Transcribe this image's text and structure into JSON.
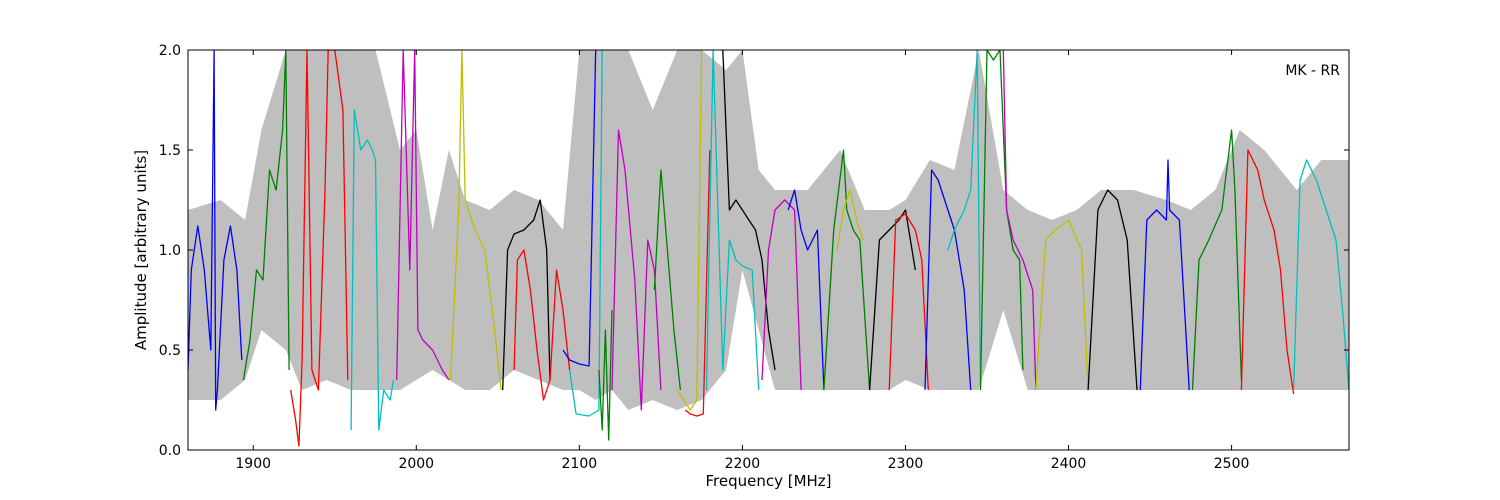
{
  "chart_data": {
    "type": "line",
    "title": "",
    "xlabel": "Frequency [MHz]",
    "ylabel": "Amplitude [arbitrary units]",
    "xlim": [
      1860,
      2572
    ],
    "ylim": [
      0.0,
      2.0
    ],
    "xticks": [
      1900,
      2000,
      2100,
      2200,
      2300,
      2400,
      2500
    ],
    "xtick_labels": [
      "1900",
      "2000",
      "2100",
      "2200",
      "2300",
      "2400",
      "2500"
    ],
    "yticks": [
      0.0,
      0.5,
      1.0,
      1.5,
      2.0
    ],
    "ytick_labels": [
      "0.0",
      "0.5",
      "1.0",
      "1.5",
      "2.0"
    ],
    "annotation": "MK - RR",
    "legend": "none",
    "grid": false,
    "background_band": {
      "color": "#bfbfbf",
      "x": [
        1860,
        1880,
        1895,
        1905,
        1920,
        1930,
        1945,
        1960,
        1975,
        1990,
        2000,
        2010,
        2020,
        2030,
        2045,
        2060,
        2075,
        2090,
        2100,
        2110,
        2120,
        2130,
        2145,
        2160,
        2175,
        2190,
        2200,
        2210,
        2220,
        2240,
        2260,
        2275,
        2290,
        2300,
        2315,
        2330,
        2345,
        2360,
        2375,
        2390,
        2405,
        2420,
        2440,
        2460,
        2475,
        2490,
        2505,
        2520,
        2540,
        2555,
        2572
      ],
      "low": [
        0.25,
        0.25,
        0.35,
        0.6,
        0.5,
        0.3,
        0.35,
        0.3,
        0.3,
        0.3,
        0.35,
        0.4,
        0.35,
        0.3,
        0.3,
        0.4,
        0.35,
        0.3,
        0.3,
        0.25,
        0.3,
        0.2,
        0.25,
        0.2,
        0.25,
        0.4,
        0.9,
        0.6,
        0.3,
        0.3,
        0.3,
        0.3,
        0.3,
        0.35,
        0.3,
        0.3,
        0.3,
        0.7,
        0.3,
        0.3,
        0.3,
        0.3,
        0.3,
        0.3,
        0.3,
        0.3,
        0.3,
        0.3,
        0.3,
        0.3,
        0.3
      ],
      "high": [
        1.2,
        1.25,
        1.15,
        1.6,
        2.0,
        2.0,
        2.0,
        2.0,
        2.0,
        1.5,
        1.6,
        1.1,
        1.5,
        1.25,
        1.2,
        1.3,
        1.25,
        1.1,
        2.0,
        2.0,
        2.0,
        2.0,
        1.7,
        2.0,
        2.0,
        1.9,
        2.0,
        1.4,
        1.3,
        1.3,
        1.5,
        1.2,
        1.2,
        1.25,
        1.45,
        1.4,
        2.0,
        1.3,
        1.2,
        1.15,
        1.2,
        1.3,
        1.3,
        1.25,
        1.2,
        1.3,
        1.6,
        1.5,
        1.3,
        1.45,
        1.45
      ]
    },
    "series": [
      {
        "color": "#0000ff",
        "x": [
          1860,
          1862,
          1866,
          1870,
          1874,
          1876,
          1877,
          1878,
          1882,
          1886,
          1890,
          1893
        ],
        "y": [
          0.4,
          0.9,
          1.12,
          0.9,
          0.5,
          2.0,
          0.2,
          0.3,
          0.95,
          1.12,
          0.9,
          0.45
        ]
      },
      {
        "color": "#008000",
        "x": [
          1894,
          1898,
          1902,
          1906,
          1910,
          1914,
          1918,
          1920,
          1922
        ],
        "y": [
          0.35,
          0.55,
          0.9,
          0.85,
          1.4,
          1.3,
          1.6,
          2.0,
          0.4
        ]
      },
      {
        "color": "#ff0000",
        "x": [
          1923,
          1926,
          1928,
          1930,
          1933,
          1936,
          1940,
          1944,
          1946,
          1950,
          1955,
          1958
        ],
        "y": [
          0.3,
          0.15,
          0.02,
          0.45,
          2.0,
          0.4,
          0.3,
          1.3,
          2.0,
          2.0,
          1.7,
          0.35
        ]
      },
      {
        "color": "#00bfbf",
        "x": [
          1960,
          1962,
          1966,
          1970,
          1973,
          1975,
          1977,
          1980,
          1984,
          1986
        ],
        "y": [
          0.1,
          1.7,
          1.5,
          1.55,
          1.5,
          1.45,
          0.1,
          0.3,
          0.25,
          0.35
        ]
      },
      {
        "color": "#bf00bf",
        "x": [
          1988,
          1992,
          1996,
          1999,
          2001,
          2004,
          2010,
          2016,
          2020
        ],
        "y": [
          0.35,
          2.0,
          0.9,
          2.0,
          0.6,
          0.55,
          0.5,
          0.4,
          0.35
        ]
      },
      {
        "color": "#bfbf00",
        "x": [
          2021,
          2026,
          2028,
          2030,
          2036,
          2042,
          2048,
          2052
        ],
        "y": [
          0.35,
          1.2,
          2.0,
          1.25,
          1.1,
          1.0,
          0.6,
          0.3
        ]
      },
      {
        "color": "#000000",
        "x": [
          2053,
          2056,
          2060,
          2066,
          2072,
          2076,
          2080,
          2082
        ],
        "y": [
          0.3,
          1.0,
          1.08,
          1.1,
          1.15,
          1.25,
          1.0,
          0.35
        ]
      },
      {
        "color": "#ff0000",
        "x": [
          2060,
          2062,
          2066,
          2070,
          2074,
          2078,
          2082,
          2086,
          2090,
          2094
        ],
        "y": [
          0.4,
          0.95,
          1.0,
          0.8,
          0.5,
          0.25,
          0.35,
          0.9,
          0.7,
          0.4
        ]
      },
      {
        "color": "#0000ff",
        "x": [
          2090,
          2094,
          2100,
          2106,
          2110
        ],
        "y": [
          0.5,
          0.45,
          0.43,
          0.42,
          2.0
        ]
      },
      {
        "color": "#00bfbf",
        "x": [
          2094,
          2098,
          2106,
          2112,
          2114
        ],
        "y": [
          0.4,
          0.18,
          0.17,
          0.2,
          2.0
        ]
      },
      {
        "color": "#008000",
        "x": [
          2112,
          2114,
          2116,
          2118,
          2120
        ],
        "y": [
          0.4,
          0.1,
          0.6,
          0.05,
          0.7
        ]
      },
      {
        "color": "#bf00bf",
        "x": [
          2120,
          2124,
          2128,
          2134,
          2138,
          2142,
          2146,
          2150
        ],
        "y": [
          0.3,
          1.6,
          1.4,
          0.85,
          0.2,
          1.05,
          0.9,
          0.3
        ]
      },
      {
        "color": "#008000",
        "x": [
          2146,
          2150,
          2154,
          2158,
          2162
        ],
        "y": [
          0.8,
          1.4,
          1.0,
          0.6,
          0.3
        ]
      },
      {
        "color": "#bfbf00",
        "x": [
          2160,
          2164,
          2168,
          2172,
          2175
        ],
        "y": [
          0.3,
          0.25,
          0.2,
          0.25,
          2.0
        ]
      },
      {
        "color": "#ff0000",
        "x": [
          2165,
          2168,
          2172,
          2176,
          2180
        ],
        "y": [
          0.2,
          0.18,
          0.17,
          0.18,
          1.5
        ]
      },
      {
        "color": "#00bfbf",
        "x": [
          2178,
          2182,
          2188,
          2192,
          2196,
          2200,
          2206,
          2210
        ],
        "y": [
          0.3,
          2.0,
          0.4,
          1.05,
          0.95,
          0.92,
          0.9,
          0.3
        ]
      },
      {
        "color": "#000000",
        "x": [
          2188,
          2192,
          2196,
          2200,
          2204,
          2208,
          2212,
          2216,
          2220
        ],
        "y": [
          2.0,
          1.2,
          1.25,
          1.2,
          1.15,
          1.1,
          0.95,
          0.6,
          0.4
        ]
      },
      {
        "color": "#bf00bf",
        "x": [
          2212,
          2216,
          2220,
          2226,
          2232,
          2236
        ],
        "y": [
          0.35,
          1.0,
          1.2,
          1.25,
          1.2,
          0.3
        ]
      },
      {
        "color": "#0000ff",
        "x": [
          2228,
          2232,
          2236,
          2240,
          2246,
          2250
        ],
        "y": [
          1.2,
          1.3,
          1.1,
          1.0,
          1.1,
          0.3
        ]
      },
      {
        "color": "#008000",
        "x": [
          2250,
          2256,
          2262,
          2264,
          2268,
          2272,
          2278
        ],
        "y": [
          0.3,
          1.1,
          1.5,
          1.2,
          1.1,
          1.05,
          0.3
        ]
      },
      {
        "color": "#bfbf00",
        "x": [
          2258,
          2262,
          2266,
          2270,
          2274
        ],
        "y": [
          1.0,
          1.2,
          1.3,
          1.15,
          1.05
        ]
      },
      {
        "color": "#000000",
        "x": [
          2278,
          2284,
          2290,
          2296,
          2300,
          2306
        ],
        "y": [
          0.3,
          1.05,
          1.1,
          1.15,
          1.2,
          0.9
        ]
      },
      {
        "color": "#ff0000",
        "x": [
          2290,
          2294,
          2300,
          2306,
          2310,
          2314
        ],
        "y": [
          0.3,
          1.15,
          1.18,
          1.1,
          0.95,
          0.3
        ]
      },
      {
        "color": "#0000ff",
        "x": [
          2312,
          2316,
          2320,
          2326,
          2330,
          2336,
          2340
        ],
        "y": [
          0.3,
          1.4,
          1.35,
          1.2,
          1.1,
          0.8,
          0.3
        ]
      },
      {
        "color": "#00bfbf",
        "x": [
          2326,
          2330,
          2336,
          2340,
          2344,
          2346
        ],
        "y": [
          1.0,
          1.1,
          1.2,
          1.3,
          2.0,
          0.3
        ]
      },
      {
        "color": "#008000",
        "x": [
          2346,
          2350,
          2354,
          2358,
          2362,
          2366,
          2370,
          2372
        ],
        "y": [
          0.3,
          2.0,
          1.95,
          2.0,
          1.2,
          1.0,
          0.95,
          0.4
        ]
      },
      {
        "color": "#bf00bf",
        "x": [
          2360,
          2362,
          2366,
          2372,
          2378,
          2380
        ],
        "y": [
          2.0,
          1.2,
          1.05,
          0.95,
          0.8,
          0.3
        ]
      },
      {
        "color": "#bfbf00",
        "x": [
          2380,
          2386,
          2392,
          2400,
          2408,
          2412
        ],
        "y": [
          0.3,
          1.05,
          1.1,
          1.15,
          1.0,
          0.3
        ]
      },
      {
        "color": "#000000",
        "x": [
          2412,
          2418,
          2424,
          2430,
          2436,
          2442
        ],
        "y": [
          0.3,
          1.2,
          1.3,
          1.25,
          1.05,
          0.3
        ]
      },
      {
        "color": "#0000ff",
        "x": [
          2444,
          2448,
          2454,
          2460,
          2461,
          2462,
          2468,
          2474
        ],
        "y": [
          0.3,
          1.15,
          1.2,
          1.15,
          1.45,
          1.2,
          1.15,
          0.3
        ]
      },
      {
        "color": "#008000",
        "x": [
          2476,
          2480,
          2486,
          2494,
          2500,
          2502,
          2506
        ],
        "y": [
          0.3,
          0.95,
          1.05,
          1.2,
          1.6,
          1.3,
          0.35
        ]
      },
      {
        "color": "#ff0000",
        "x": [
          2506,
          2510,
          2516,
          2520,
          2526,
          2530,
          2534,
          2538
        ],
        "y": [
          0.3,
          1.5,
          1.4,
          1.25,
          1.1,
          0.9,
          0.5,
          0.28
        ]
      },
      {
        "color": "#00bfbf",
        "x": [
          2538,
          2542,
          2546,
          2552,
          2558,
          2564,
          2568,
          2572
        ],
        "y": [
          0.3,
          1.35,
          1.45,
          1.35,
          1.2,
          1.05,
          0.7,
          0.3
        ]
      }
    ]
  }
}
